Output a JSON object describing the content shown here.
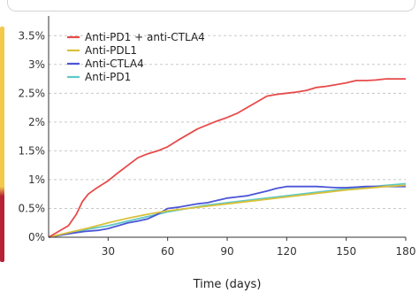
{
  "chart_data": {
    "type": "line",
    "title": "",
    "xlabel": "Time (days)",
    "ylabel": "",
    "xlim": [
      0,
      180
    ],
    "ylim": [
      0,
      3.75
    ],
    "x_ticks": [
      30,
      60,
      90,
      120,
      150,
      180
    ],
    "y_ticks": [
      0,
      0.5,
      1,
      1.5,
      2,
      2.5,
      3,
      3.5
    ],
    "x_tick_labels": [
      "30",
      "60",
      "90",
      "120",
      "150",
      "180"
    ],
    "y_tick_labels": [
      "0%",
      "0.5%",
      "1%",
      "1.5%",
      "2%",
      "2.5%",
      "3%",
      "3.5%"
    ],
    "grid": "horizontal dashed",
    "legend_position": "top-left",
    "series": [
      {
        "name": "Anti-PD1 + anti-CTLA4",
        "color": "#e74a4a",
        "x": [
          0,
          5,
          10,
          14,
          17,
          20,
          24,
          30,
          35,
          40,
          45,
          50,
          55,
          60,
          65,
          70,
          75,
          80,
          85,
          90,
          95,
          100,
          105,
          110,
          115,
          120,
          125,
          130,
          135,
          140,
          145,
          150,
          155,
          160,
          165,
          170,
          175,
          180
        ],
        "y": [
          0,
          0.1,
          0.2,
          0.4,
          0.62,
          0.75,
          0.85,
          0.98,
          1.12,
          1.25,
          1.38,
          1.45,
          1.5,
          1.57,
          1.68,
          1.78,
          1.88,
          1.95,
          2.02,
          2.08,
          2.15,
          2.25,
          2.35,
          2.45,
          2.48,
          2.5,
          2.52,
          2.55,
          2.6,
          2.62,
          2.65,
          2.68,
          2.72,
          2.72,
          2.73,
          2.75,
          2.75,
          2.75
        ]
      },
      {
        "name": "Anti-PDL1",
        "color": "#d9c13a",
        "x": [
          0,
          10,
          20,
          30,
          40,
          50,
          60,
          70,
          80,
          90,
          100,
          110,
          120,
          130,
          140,
          150,
          160,
          170,
          180
        ],
        "y": [
          0,
          0.08,
          0.16,
          0.25,
          0.33,
          0.4,
          0.46,
          0.5,
          0.54,
          0.58,
          0.62,
          0.66,
          0.7,
          0.74,
          0.78,
          0.82,
          0.85,
          0.88,
          0.9
        ]
      },
      {
        "name": "Anti-CTLA4",
        "color": "#4b55d6",
        "x": [
          0,
          10,
          18,
          25,
          30,
          35,
          40,
          45,
          50,
          55,
          60,
          65,
          70,
          75,
          80,
          85,
          90,
          95,
          100,
          105,
          110,
          115,
          120,
          125,
          130,
          135,
          140,
          145,
          150,
          155,
          160,
          165,
          170,
          175,
          180
        ],
        "y": [
          0,
          0.06,
          0.1,
          0.12,
          0.15,
          0.2,
          0.25,
          0.28,
          0.32,
          0.4,
          0.5,
          0.52,
          0.55,
          0.58,
          0.6,
          0.64,
          0.68,
          0.7,
          0.72,
          0.76,
          0.8,
          0.85,
          0.88,
          0.88,
          0.88,
          0.88,
          0.87,
          0.86,
          0.86,
          0.87,
          0.88,
          0.88,
          0.88,
          0.88,
          0.88
        ]
      },
      {
        "name": "Anti-PD1",
        "color": "#5fc8c8",
        "x": [
          0,
          10,
          20,
          30,
          40,
          50,
          60,
          70,
          80,
          90,
          100,
          110,
          120,
          130,
          140,
          150,
          160,
          170,
          180
        ],
        "y": [
          0,
          0.07,
          0.14,
          0.2,
          0.28,
          0.36,
          0.44,
          0.5,
          0.56,
          0.6,
          0.64,
          0.68,
          0.72,
          0.76,
          0.8,
          0.84,
          0.87,
          0.9,
          0.93
        ]
      }
    ]
  }
}
